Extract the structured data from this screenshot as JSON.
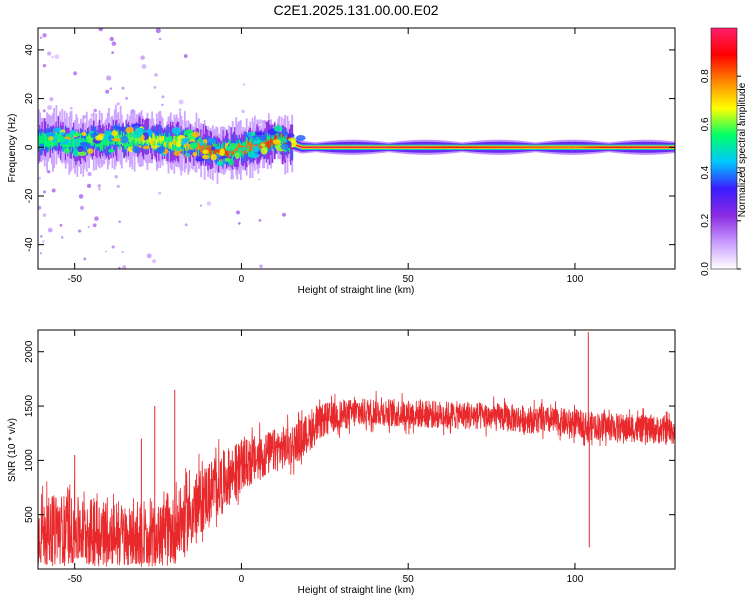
{
  "page": {
    "title": "C2E1.2025.131.00.00.E02"
  },
  "chart_data": [
    {
      "type": "heatmap",
      "title": "C2E1.2025.131.00.00.E02",
      "xlabel": "Height of straight line (km)",
      "ylabel": "Frequency (Hz)",
      "xlim": [
        -61,
        130
      ],
      "ylim": [
        -50,
        49
      ],
      "xticks": [
        -50,
        0,
        50,
        100
      ],
      "yticks": [
        -40,
        -20,
        0,
        20,
        40
      ],
      "grid": false,
      "colorbar": {
        "label": "Normalized spectral amplitude",
        "range": [
          0,
          1
        ],
        "ticks": [
          0.0,
          0.2,
          0.4,
          0.6,
          0.8
        ],
        "tick_labels": [
          "0.0",
          "0.2",
          "0.4",
          "0.6",
          "0.8"
        ],
        "colormap": [
          "#ffffff",
          "#c89bff",
          "#8a2be2",
          "#3a1cff",
          "#00c8ff",
          "#00ff66",
          "#ffff00",
          "#ff8800",
          "#ff0000",
          "#ff1f6b"
        ]
      },
      "ridge": {
        "description_free": true,
        "x": [
          -58,
          -55,
          -52,
          -48,
          -45,
          -42,
          -38,
          -35,
          -32,
          -28,
          -25,
          -22,
          -18,
          -15,
          -12,
          -8,
          -5,
          -2,
          2,
          5,
          8,
          10,
          14,
          18,
          25,
          40,
          60,
          80,
          100,
          104,
          110,
          130
        ],
        "y": [
          3,
          4,
          2,
          1,
          3,
          2,
          4,
          3,
          4,
          3,
          3,
          2,
          2,
          1,
          0,
          -2,
          -2,
          -1,
          0,
          1,
          2,
          3,
          2,
          0,
          0,
          0,
          0,
          0,
          0,
          0,
          0,
          0
        ],
        "amplitude": [
          0.55,
          0.6,
          0.5,
          0.5,
          0.6,
          0.55,
          0.6,
          0.6,
          0.6,
          0.65,
          0.65,
          0.7,
          0.7,
          0.75,
          0.8,
          0.85,
          0.85,
          0.8,
          0.8,
          0.8,
          0.85,
          0.85,
          0.9,
          0.95,
          0.95,
          0.95,
          0.9,
          0.85,
          0.8,
          0.85,
          0.9,
          0.95
        ]
      }
    },
    {
      "type": "line",
      "xlabel": "Height of straight line (km)",
      "ylabel": "SNR (10 * v/v)",
      "xlim": [
        -61,
        130
      ],
      "ylim": [
        0,
        2200
      ],
      "xticks": [
        -50,
        0,
        50,
        100
      ],
      "yticks": [
        500,
        1000,
        1500,
        2000
      ],
      "grid": false,
      "color": "#e8282b",
      "series": [
        {
          "envelope_x": [
            -61,
            -55,
            -50,
            -45,
            -40,
            -35,
            -30,
            -25,
            -20,
            -15,
            -10,
            -5,
            0,
            5,
            10,
            15,
            20,
            25,
            30,
            40,
            50,
            60,
            70,
            80,
            90,
            100,
            103,
            104,
            105,
            110,
            120,
            130
          ],
          "mean_y": [
            320,
            380,
            350,
            330,
            360,
            300,
            260,
            280,
            360,
            520,
            700,
            820,
            950,
            1020,
            1090,
            1140,
            1250,
            1380,
            1420,
            1450,
            1430,
            1420,
            1410,
            1390,
            1370,
            1340,
            1330,
            1300,
            1320,
            1310,
            1290,
            1270
          ],
          "spread_y": [
            300,
            320,
            320,
            320,
            320,
            300,
            280,
            300,
            320,
            320,
            300,
            280,
            240,
            220,
            200,
            200,
            180,
            150,
            140,
            130,
            130,
            130,
            130,
            130,
            130,
            130,
            130,
            130,
            130,
            130,
            130,
            130
          ],
          "spikes": [
            {
              "x": -20,
              "y": 1650
            },
            {
              "x": -26,
              "y": 1500
            },
            {
              "x": -30,
              "y": 1200
            },
            {
              "x": -50,
              "y": 1050
            },
            {
              "x": 104,
              "y": 2180
            },
            {
              "x": 104.3,
              "y": 200
            }
          ]
        }
      ]
    }
  ]
}
